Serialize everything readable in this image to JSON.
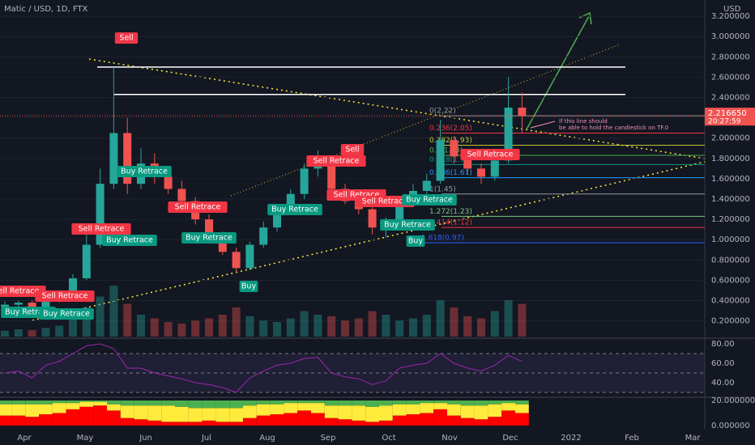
{
  "chart_data": {
    "type": "candlestick",
    "title": "Matic / USD, 1D, FTX",
    "currency": "USD",
    "last_price": "2.216650",
    "timer": "20:27:59",
    "months": [
      "Apr",
      "May",
      "Jun",
      "Jul",
      "Aug",
      "Sep",
      "Oct",
      "Nov",
      "Dec",
      "2022",
      "Feb",
      "Mar"
    ],
    "open": [
      0.34,
      0.36,
      0.38,
      0.34,
      0.4,
      0.45,
      0.62,
      0.95,
      1.55,
      2.05,
      1.55,
      1.75,
      1.62,
      1.5,
      1.38,
      1.2,
      1.02,
      0.88,
      0.72,
      0.95,
      1.12,
      1.3,
      1.45,
      1.7,
      1.8,
      1.5,
      1.38,
      1.3,
      1.12,
      1.18,
      1.38,
      1.48,
      1.58,
      1.98,
      1.82,
      1.7,
      1.62,
      1.78,
      2.3
    ],
    "high": [
      0.39,
      0.4,
      0.4,
      0.42,
      0.48,
      0.66,
      1.05,
      1.7,
      2.7,
      2.2,
      1.9,
      1.85,
      1.72,
      1.58,
      1.42,
      1.25,
      1.08,
      0.92,
      0.98,
      1.18,
      1.35,
      1.5,
      1.75,
      1.88,
      1.82,
      1.55,
      1.45,
      1.35,
      1.22,
      1.42,
      1.55,
      1.65,
      2.18,
      2.02,
      1.88,
      1.75,
      1.88,
      2.6,
      2.45
    ],
    "low": [
      0.32,
      0.34,
      0.32,
      0.33,
      0.38,
      0.44,
      0.6,
      0.92,
      1.5,
      1.45,
      1.5,
      1.55,
      1.45,
      1.35,
      1.15,
      0.98,
      0.85,
      0.68,
      0.7,
      0.92,
      1.08,
      1.25,
      1.4,
      1.62,
      1.45,
      1.35,
      1.25,
      1.05,
      1.02,
      1.15,
      1.35,
      1.45,
      1.55,
      1.75,
      1.65,
      1.55,
      1.58,
      1.75,
      2.05
    ],
    "close": [
      0.36,
      0.38,
      0.34,
      0.4,
      0.45,
      0.62,
      0.95,
      1.55,
      2.05,
      1.55,
      1.75,
      1.62,
      1.5,
      1.38,
      1.2,
      1.02,
      0.88,
      0.72,
      0.95,
      1.12,
      1.3,
      1.45,
      1.7,
      1.8,
      1.5,
      1.38,
      1.3,
      1.12,
      1.18,
      1.38,
      1.48,
      1.58,
      1.98,
      1.82,
      1.7,
      1.62,
      1.78,
      2.3,
      2.22
    ],
    "up_color": "#26a69a",
    "down_color": "#ef5350",
    "ylim": [
      0.03,
      3.36
    ],
    "yticks": [
      {
        "value": 0.2,
        "label": "0.200000"
      },
      {
        "value": 0.4,
        "label": "0.400000"
      },
      {
        "value": 0.6,
        "label": "0.600000"
      },
      {
        "value": 0.8,
        "label": "0.800000"
      },
      {
        "value": 1.0,
        "label": "1.000000"
      },
      {
        "value": 1.2,
        "label": "1.200000"
      },
      {
        "value": 1.4,
        "label": "1.400000"
      },
      {
        "value": 1.6,
        "label": "1.600000"
      },
      {
        "value": 1.8,
        "label": "1.800000"
      },
      {
        "value": 2.0,
        "label": "2.000000"
      },
      {
        "value": 2.2,
        "label": "2.200000"
      },
      {
        "value": 2.4,
        "label": "2.400000"
      },
      {
        "value": 2.6,
        "label": "2.600000"
      },
      {
        "value": 2.8,
        "label": "2.800000"
      },
      {
        "value": 3.0,
        "label": "3.000000"
      },
      {
        "value": 3.2,
        "label": "3.200000"
      }
    ],
    "levels": [
      2.7,
      2.43
    ],
    "fib": [
      {
        "value": 2.22,
        "label": "0(2.22)",
        "color": "#9598a1"
      },
      {
        "value": 2.05,
        "label": "0.236(2.05)",
        "color": "#f23645"
      },
      {
        "value": 1.93,
        "label": "0.382(1.93)",
        "color": "#c0ca33"
      },
      {
        "value": 1.83,
        "label": "0.5(1.83)",
        "color": "#4caf50"
      },
      {
        "value": 1.74,
        "label": "0.618(1.74)",
        "color": "#089981"
      },
      {
        "value": 1.61,
        "label": "0.786(1.61)",
        "color": "#2196f3"
      },
      {
        "value": 1.45,
        "label": "1(1.45)",
        "color": "#9598a1"
      },
      {
        "value": 1.23,
        "label": "1.272(1.23)",
        "color": "#81c784"
      },
      {
        "value": 1.12,
        "label": "1.414(1.12)",
        "color": "#f23645"
      },
      {
        "value": 0.97,
        "label": "1.618(0.97)",
        "color": "#2962ff"
      }
    ],
    "signals": [
      "Sell",
      "Sell Retrace",
      "Buy Retrace",
      "Buy Retrace",
      "Sell Retrace",
      "Buy Retrace",
      "Buy",
      "Buy Retrace",
      "Sell Retrace",
      "Sell",
      "Sell Retrace",
      "Sell Retrace",
      "Buy Retrace",
      "Buy Retrace",
      "Buy",
      "Sell Retrace",
      "Sell Retrace",
      "Sell Retrace",
      "Buy Retrace",
      "Buy Retrace"
    ],
    "note": [
      "If this line should",
      "be able to hold the candlestick on TF.0"
    ],
    "volume": [
      8,
      10,
      9,
      12,
      15,
      25,
      40,
      55,
      70,
      45,
      30,
      25,
      20,
      18,
      22,
      25,
      30,
      40,
      28,
      22,
      20,
      25,
      35,
      30,
      28,
      22,
      25,
      35,
      30,
      22,
      25,
      30,
      50,
      40,
      28,
      25,
      35,
      50,
      45
    ],
    "rsi": {
      "values": [
        50,
        52,
        45,
        58,
        62,
        70,
        78,
        80,
        75,
        55,
        55,
        50,
        47,
        44,
        40,
        38,
        35,
        30,
        45,
        52,
        58,
        60,
        65,
        66,
        50,
        46,
        44,
        38,
        42,
        55,
        58,
        60,
        70,
        60,
        55,
        52,
        58,
        68,
        62
      ],
      "color": "#9c27b0",
      "yticks": [
        {
          "value": 40,
          "label": "40.00"
        },
        {
          "value": 60,
          "label": "60.00"
        },
        {
          "value": 80,
          "label": "80.00"
        }
      ],
      "levels": [
        70,
        50,
        30
      ]
    },
    "oscillator": {
      "series": [
        {
          "color": "#ff0000",
          "values": [
            8,
            8,
            7,
            9,
            10,
            13,
            15,
            16,
            12,
            6,
            5,
            4,
            3,
            3,
            3,
            4,
            3,
            3,
            6,
            8,
            9,
            10,
            12,
            10,
            6,
            5,
            4,
            3,
            4,
            8,
            9,
            10,
            13,
            8,
            6,
            5,
            7,
            12,
            10
          ]
        },
        {
          "color": "#ffeb3b",
          "values": [
            9,
            9,
            10,
            8,
            8,
            5,
            4,
            3,
            5,
            10,
            11,
            12,
            13,
            12,
            11,
            10,
            11,
            11,
            10,
            9,
            8,
            8,
            6,
            8,
            10,
            11,
            12,
            12,
            12,
            9,
            8,
            8,
            5,
            9,
            10,
            11,
            10,
            6,
            7
          ]
        },
        {
          "color": "#4caf50",
          "values": [
            3,
            3,
            3,
            3,
            2,
            2,
            1,
            1,
            3,
            4,
            4,
            4,
            4,
            5,
            6,
            6,
            6,
            6,
            4,
            3,
            3,
            2,
            2,
            2,
            4,
            4,
            4,
            5,
            4,
            3,
            3,
            2,
            2,
            3,
            4,
            4,
            3,
            2,
            3
          ]
        }
      ],
      "yticks": [
        {
          "value": 0,
          "label": "0.000000"
        },
        {
          "value": 20,
          "label": "20.000000"
        }
      ]
    }
  }
}
